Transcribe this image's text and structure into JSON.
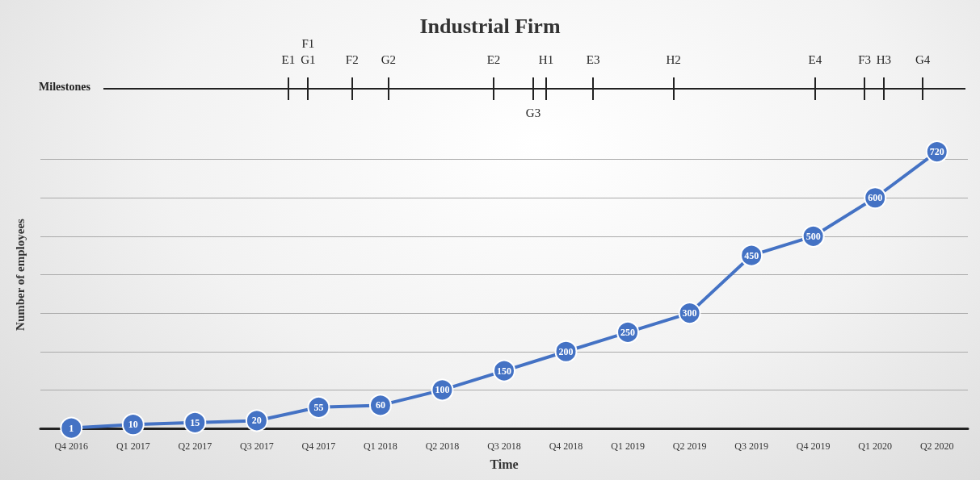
{
  "chart_data": {
    "type": "line",
    "title": "Industrial Firm",
    "xlabel": "Time",
    "ylabel": "Number of employees",
    "categories": [
      "Q4 2016",
      "Q1 2017",
      "Q2 2017",
      "Q3 2017",
      "Q4 2017",
      "Q1 2018",
      "Q2 2018",
      "Q3 2018",
      "Q4 2018",
      "Q1 2019",
      "Q2 2019",
      "Q3 2019",
      "Q4 2019",
      "Q1 2020",
      "Q2 2020"
    ],
    "series": [
      {
        "color": "#4472c4",
        "values": [
          1,
          10,
          15,
          20,
          55,
          60,
          100,
          150,
          200,
          250,
          300,
          450,
          500,
          600,
          720
        ]
      }
    ],
    "data_labels": true,
    "marker": "circle",
    "line_style": "solid",
    "grid": "y",
    "tick_labels": "x",
    "yticks": [
      {
        "value": 0,
        "label": null
      },
      {
        "value": 100,
        "label": null
      },
      {
        "value": 200,
        "label": null
      },
      {
        "value": 300,
        "label": null
      },
      {
        "value": 400,
        "label": null
      },
      {
        "value": 500,
        "label": null
      },
      {
        "value": 600,
        "label": null
      },
      {
        "value": 700,
        "label": null
      }
    ],
    "annotations": [
      "Milestones",
      "E1",
      "F1",
      "G1",
      "F2",
      "G2",
      "E2",
      "H1",
      "G3",
      "E3",
      "H2",
      "E4",
      "F3",
      "H3",
      "G4"
    ]
  }
}
